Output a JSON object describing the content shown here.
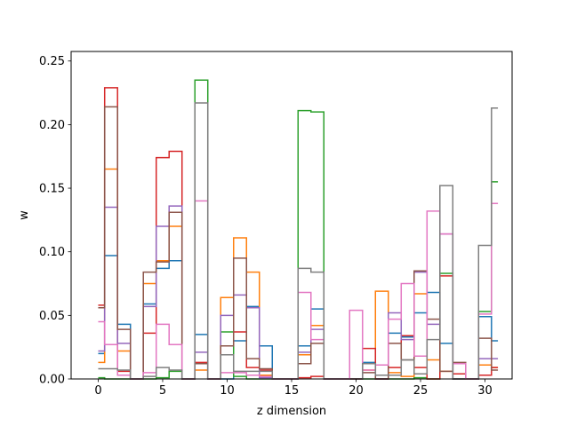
{
  "chart_data": {
    "type": "step",
    "xlabel": "z dimension",
    "ylabel": "w",
    "xlim": [
      -2.1,
      32.1
    ],
    "ylim": [
      0,
      0.2575
    ],
    "xticks": [
      0,
      5,
      10,
      15,
      20,
      25,
      30
    ],
    "yticks": [
      0.0,
      0.05,
      0.1,
      0.15,
      0.2,
      0.25
    ],
    "ytick_labels": [
      "0.00",
      "0.05",
      "0.10",
      "0.15",
      "0.20",
      "0.25"
    ],
    "grid": false,
    "legend": "none",
    "x": [
      0,
      1,
      2,
      3,
      4,
      5,
      6,
      7,
      8,
      9,
      10,
      11,
      12,
      13,
      14,
      15,
      16,
      17,
      18,
      19,
      20,
      21,
      22,
      23,
      24,
      25,
      26,
      27,
      28,
      29,
      30,
      31
    ],
    "series": [
      {
        "color": "#1f77b4",
        "values": [
          0.02,
          0.097,
          0.043,
          0,
          0.059,
          0.087,
          0.093,
          0,
          0.035,
          0,
          0,
          0.03,
          0.057,
          0.026,
          0,
          0,
          0.026,
          0.055,
          0,
          0,
          0,
          0.013,
          0,
          0.036,
          0.033,
          0.052,
          0.068,
          0.028,
          0,
          0,
          0.049,
          0.03
        ]
      },
      {
        "color": "#ff7f0e",
        "values": [
          0.013,
          0.165,
          0.022,
          0,
          0.075,
          0.093,
          0.12,
          0,
          0.007,
          0,
          0.064,
          0.111,
          0.084,
          0.003,
          0,
          0,
          0.019,
          0.042,
          0,
          0,
          0,
          0.007,
          0.069,
          0.005,
          0.002,
          0.067,
          0.015,
          0.006,
          0,
          0,
          0.011,
          0.009
        ]
      },
      {
        "color": "#2ca02c",
        "values": [
          0.001,
          0,
          0,
          0,
          0,
          0.001,
          0.006,
          0,
          0.235,
          0,
          0.037,
          0.002,
          0,
          0,
          0,
          0,
          0.211,
          0.21,
          0,
          0,
          0,
          0,
          0,
          0,
          0,
          0.001,
          0,
          0.083,
          0,
          0,
          0.053,
          0.155
        ]
      },
      {
        "color": "#d62728",
        "values": [
          0.058,
          0.229,
          0.006,
          0,
          0.036,
          0.174,
          0.179,
          0,
          0.013,
          0,
          0.026,
          0.037,
          0.009,
          0.007,
          0,
          0,
          0.001,
          0.002,
          0,
          0,
          0,
          0.024,
          0,
          0.009,
          0.034,
          0.009,
          0,
          0.081,
          0.004,
          0,
          0.003,
          0.009
        ]
      },
      {
        "color": "#9467bd",
        "values": [
          0.022,
          0.135,
          0.028,
          0,
          0.057,
          0.12,
          0.136,
          0,
          0.021,
          0,
          0.05,
          0.066,
          0.056,
          0.001,
          0,
          0,
          0.021,
          0.039,
          0,
          0,
          0,
          0.012,
          0,
          0.052,
          0.031,
          0.084,
          0.043,
          0.114,
          0,
          0,
          0.016,
          0.016
        ]
      },
      {
        "color": "#8c564b",
        "values": [
          0.056,
          0.214,
          0.039,
          0,
          0.084,
          0.092,
          0.131,
          0,
          0.012,
          0,
          0.026,
          0.095,
          0.016,
          0.008,
          0,
          0,
          0.012,
          0.028,
          0,
          0,
          0,
          0.005,
          0,
          0.028,
          0.015,
          0.085,
          0.047,
          0.006,
          0.013,
          0,
          0.032,
          0.007
        ]
      },
      {
        "color": "#e377c2",
        "values": [
          0.045,
          0.027,
          0.003,
          0,
          0.005,
          0.043,
          0.027,
          0,
          0.14,
          0,
          0.005,
          0.005,
          0.003,
          0.002,
          0,
          0,
          0.068,
          0.031,
          0,
          0,
          0.054,
          0.007,
          0.011,
          0.047,
          0.075,
          0.018,
          0.132,
          0.114,
          0.012,
          0,
          0.051,
          0.138
        ]
      },
      {
        "color": "#7f7f7f",
        "values": [
          0.008,
          0.008,
          0.007,
          0,
          0.002,
          0.009,
          0.007,
          0,
          0.217,
          0,
          0.019,
          0.006,
          0.006,
          0.006,
          0,
          0,
          0.087,
          0.084,
          0,
          0,
          0,
          0.012,
          0.003,
          0.003,
          0.015,
          0.004,
          0.031,
          0.152,
          0,
          0,
          0.105,
          0.213
        ]
      }
    ]
  }
}
